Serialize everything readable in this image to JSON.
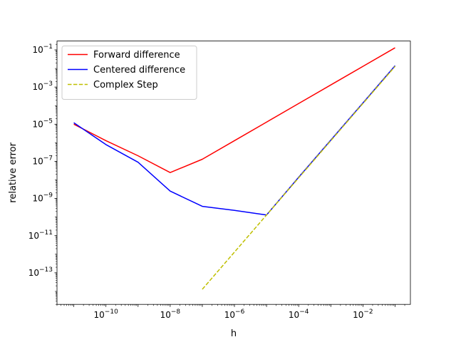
{
  "chart_data": {
    "type": "line",
    "xlabel": "h",
    "ylabel": "relative error",
    "xscale": "log",
    "yscale": "log",
    "xlim": [
      3e-12,
      0.3
    ],
    "ylim": [
      2e-15,
      0.3
    ],
    "xticks": [
      {
        "value": 1e-10,
        "base": "10",
        "exp": "−10"
      },
      {
        "value": 1e-08,
        "base": "10",
        "exp": "−8"
      },
      {
        "value": 1e-06,
        "base": "10",
        "exp": "−6"
      },
      {
        "value": 0.0001,
        "base": "10",
        "exp": "−4"
      },
      {
        "value": 0.01,
        "base": "10",
        "exp": "−2"
      }
    ],
    "yticks": [
      {
        "value": 1e-13,
        "base": "10",
        "exp": "−13"
      },
      {
        "value": 1e-11,
        "base": "10",
        "exp": "−11"
      },
      {
        "value": 1e-09,
        "base": "10",
        "exp": "−9"
      },
      {
        "value": 1e-07,
        "base": "10",
        "exp": "−7"
      },
      {
        "value": 1e-05,
        "base": "10",
        "exp": "−5"
      },
      {
        "value": 0.001,
        "base": "10",
        "exp": "−3"
      },
      {
        "value": 0.1,
        "base": "10",
        "exp": "−1"
      }
    ],
    "grid": false,
    "legend_position": "top-left",
    "series": [
      {
        "name": "Forward difference",
        "color": "#ff0000",
        "dash": "solid",
        "x": [
          1e-11,
          1e-10,
          1e-09,
          1e-08,
          1e-07,
          1e-06,
          1e-05,
          0.0001,
          0.001,
          0.01,
          0.1
        ],
        "y": [
          1e-05,
          1.3e-06,
          2e-07,
          2.5e-08,
          1.3e-07,
          1.3e-06,
          1.3e-05,
          0.00013,
          0.0013,
          0.013,
          0.13
        ]
      },
      {
        "name": "Centered difference",
        "color": "#0000ff",
        "dash": "solid",
        "x": [
          1e-11,
          1e-10,
          1e-09,
          1e-08,
          1e-07,
          1e-06,
          1e-05,
          0.0001,
          0.001,
          0.01,
          0.1
        ],
        "y": [
          1.2e-05,
          8e-07,
          9e-08,
          2.5e-09,
          3.8e-10,
          2.3e-10,
          1.3e-10,
          1.4e-08,
          1.4e-06,
          0.00014,
          0.014
        ]
      },
      {
        "name": "Complex Step",
        "color": "#bfbf00",
        "dash": "dashed",
        "x": [
          1e-07,
          1e-06,
          1e-05,
          0.0001,
          0.001,
          0.01,
          0.1
        ],
        "y": [
          1.3e-14,
          1.3e-12,
          1.3e-10,
          1.3e-08,
          1.3e-06,
          0.00013,
          0.013
        ]
      }
    ]
  }
}
